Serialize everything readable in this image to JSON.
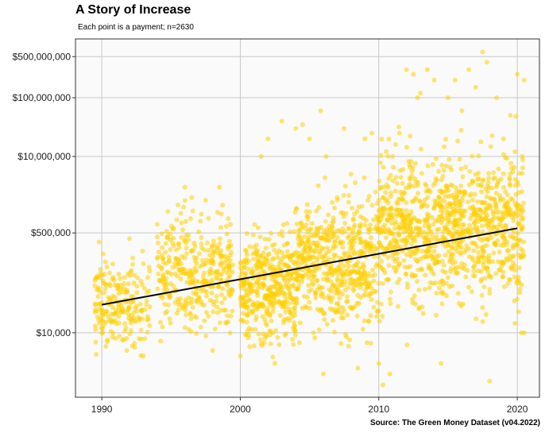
{
  "chart_data": {
    "type": "scatter",
    "title": "A Story of Increase",
    "subtitle": "Each point is a payment; n=2630",
    "caption": "Source: The Green Money Dataset (v04.2022)",
    "xlabel": "",
    "ylabel": "",
    "x_ticks": [
      1990,
      2000,
      2010,
      2020
    ],
    "x_tick_labels": [
      "1990",
      "2000",
      "2010",
      "2020"
    ],
    "xlim": [
      1988.1,
      2021.6
    ],
    "y_scale": "log10",
    "y_ticks": [
      10000,
      500000,
      10000000,
      100000000,
      500000000
    ],
    "y_tick_labels": [
      "$10,000",
      "$500,000",
      "$10,000,000",
      "$100,000,000",
      "$500,000,000"
    ],
    "ylim": [
      800,
      1000000000
    ],
    "grid": true,
    "point_color": "#FFD000",
    "trend_color": "#000000",
    "panel_background": "#FAFAFA",
    "grid_color": "#C8C8C8",
    "n_points": 2630,
    "trend_line": {
      "x": [
        1990,
        2020
      ],
      "y": [
        30000,
        600000
      ]
    },
    "density_profile": [
      {
        "year_range": [
          1989.5,
          1993.5
        ],
        "median": 30000,
        "spread": 0.35
      },
      {
        "year_range": [
          1994,
          1999.5
        ],
        "median": 100000,
        "spread": 0.45
      },
      {
        "year_range": [
          2000,
          2004
        ],
        "median": 60000,
        "spread": 0.45
      },
      {
        "year_range": [
          2004,
          2010
        ],
        "median": 150000,
        "spread": 0.5
      },
      {
        "year_range": [
          2010,
          2020.5
        ],
        "median": 600000,
        "spread": 0.6
      }
    ],
    "series": [
      {
        "values": [
          [
            1989.8,
            350000
          ],
          [
            1989.9,
            120000
          ],
          [
            1990.0,
            10000
          ],
          [
            1990.1,
            220000
          ],
          [
            1990.3,
            15000
          ],
          [
            1991.0,
            8000
          ],
          [
            1991.8,
            5000
          ],
          [
            1992.2,
            6000
          ],
          [
            1993.0,
            4000
          ],
          [
            1992.0,
            400000
          ],
          [
            1993.0,
            150000
          ],
          [
            1994.0,
            700000
          ],
          [
            1995.5,
            1500000
          ],
          [
            1996.0,
            3000000
          ],
          [
            1996.5,
            2000000
          ],
          [
            1997.5,
            1800000
          ],
          [
            1998.5,
            3000000
          ],
          [
            1998.0,
            5000
          ],
          [
            1999.0,
            15000
          ],
          [
            2000.0,
            4000
          ],
          [
            2001.0,
            6000
          ],
          [
            2001.5,
            10000000
          ],
          [
            2002.0,
            20000000
          ],
          [
            2002.5,
            3000
          ],
          [
            2003.0,
            40000000
          ],
          [
            2004.0,
            30000000
          ],
          [
            2004.5,
            35000000
          ],
          [
            2005.0,
            20000000
          ],
          [
            2005.8,
            60000000
          ],
          [
            2006.0,
            2000
          ],
          [
            2006.2,
            10000000
          ],
          [
            2007.0,
            2000000
          ],
          [
            2007.5,
            30000000
          ],
          [
            2008.0,
            5000000
          ],
          [
            2008.5,
            2500
          ],
          [
            2009.0,
            20000000
          ],
          [
            2009.5,
            25000000
          ],
          [
            2010.0,
            3000
          ],
          [
            2010.3,
            1300
          ],
          [
            2010.0,
            800000
          ],
          [
            2010.5,
            500
          ],
          [
            2010.8,
            2000
          ],
          [
            2011.0,
            10000000
          ],
          [
            2011.5,
            25000000
          ],
          [
            2012.0,
            300000000
          ],
          [
            2012.5,
            250000000
          ],
          [
            2012.8,
            100000000
          ],
          [
            2013.0,
            120000000
          ],
          [
            2013.5,
            300000000
          ],
          [
            2014.0,
            200000000
          ],
          [
            2014.5,
            3000
          ],
          [
            2015.0,
            100000000
          ],
          [
            2015.5,
            200000000
          ],
          [
            2016.0,
            60000000
          ],
          [
            2016.5,
            300000000
          ],
          [
            2017.0,
            150000000
          ],
          [
            2017.5,
            600000000
          ],
          [
            2017.8,
            400000000
          ],
          [
            2018.0,
            1500
          ],
          [
            2018.5,
            100000000
          ],
          [
            2019.0,
            20000000
          ],
          [
            2019.5,
            50000000
          ],
          [
            2020.0,
            250000000
          ],
          [
            2020.5,
            200000000
          ],
          [
            2020.3,
            10000
          ],
          [
            2020.5,
            10000
          ]
        ]
      }
    ]
  }
}
